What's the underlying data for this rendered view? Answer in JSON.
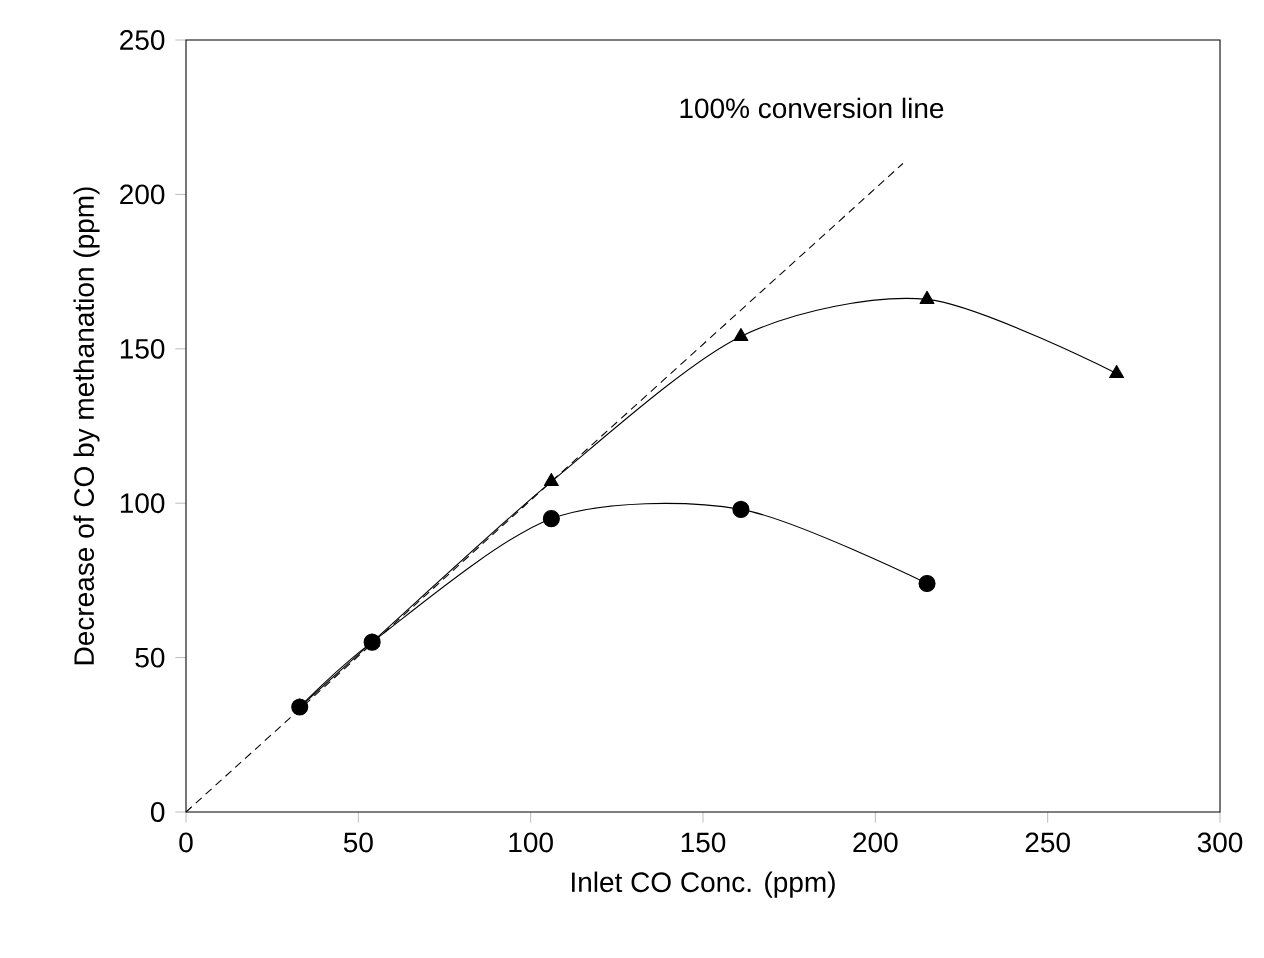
{
  "chart_data": {
    "type": "line",
    "xlabel": "Inlet CO Conc. (ppm)",
    "ylabel": "Decrease of  CO by methanation (ppm)",
    "xlim": [
      0,
      300
    ],
    "ylim": [
      0,
      250
    ],
    "xticks": [
      0,
      50,
      100,
      150,
      200,
      250,
      300
    ],
    "yticks": [
      0,
      50,
      100,
      150,
      200,
      250
    ],
    "grid": false,
    "annotations": [
      "100% conversion line"
    ],
    "series": [
      {
        "color": "#000000",
        "marker": "triangle",
        "line_style": "solid",
        "x": [
          33,
          54,
          106,
          161,
          215,
          270
        ],
        "values": [
          34,
          55,
          107,
          154,
          166,
          142
        ]
      },
      {
        "color": "#000000",
        "marker": "circle",
        "line_style": "solid",
        "x": [
          33,
          54,
          106,
          161,
          215
        ],
        "values": [
          34,
          55,
          95,
          98,
          74
        ]
      },
      {
        "color": "#000000",
        "marker": "none",
        "line_style": "dashed",
        "x": [
          0,
          208
        ],
        "values": [
          0,
          210
        ]
      }
    ]
  }
}
